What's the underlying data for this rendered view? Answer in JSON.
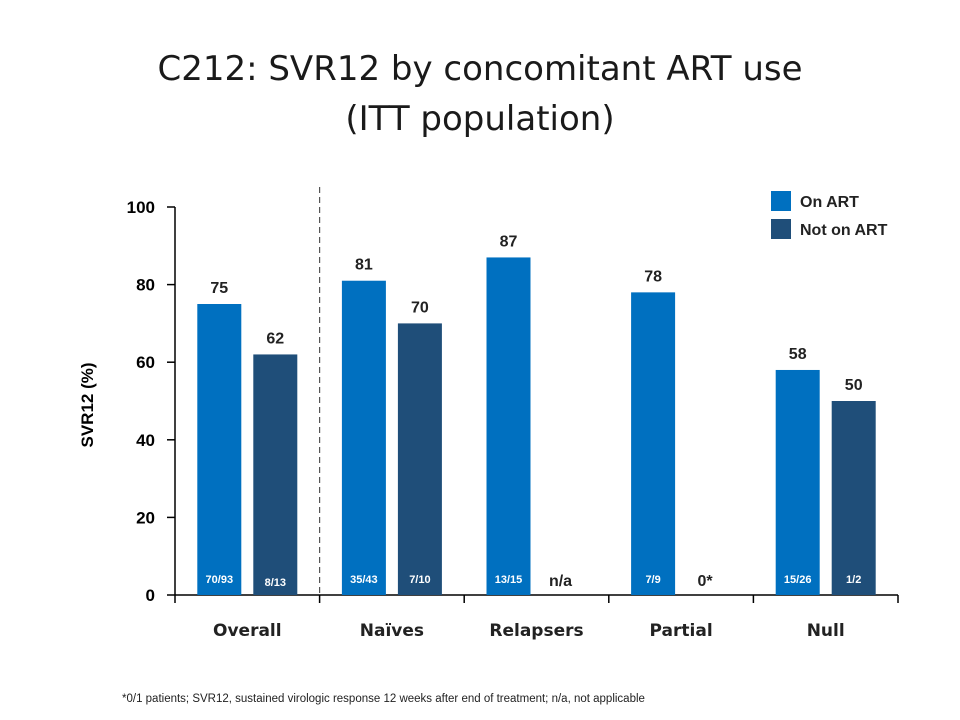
{
  "title_line1": "C212: SVR12 by concomitant ART use",
  "title_line2": "(ITT population)",
  "footnote": "*0/1 patients; SVR12, sustained virologic response 12 weeks after end of treatment; n/a, not applicable",
  "colors": {
    "on_art": "#0070C0",
    "not_on_art": "#1F4E79",
    "axis": "#000000"
  },
  "chart_data": {
    "type": "bar",
    "title": "C212: SVR12 by concomitant ART use (ITT population)",
    "ylabel": "SVR12 (%)",
    "xlabel": "",
    "ylim": [
      0,
      100
    ],
    "yticks": [
      0,
      20,
      40,
      60,
      80,
      100
    ],
    "grid": false,
    "legend_position": "top-right",
    "categories": [
      "Overall",
      "Naïves",
      "Relapsers",
      "Partial",
      "Null"
    ],
    "series": [
      {
        "name": "On ART",
        "values": [
          75,
          81,
          87,
          78,
          58
        ],
        "fractions": [
          "70/93",
          "35/43",
          "13/15",
          "7/9",
          "15/26"
        ]
      },
      {
        "name": "Not on ART",
        "values": [
          62,
          70,
          null,
          0,
          50
        ],
        "fractions": [
          "8/13",
          "7/10",
          "",
          "",
          "1/2"
        ],
        "value_labels": [
          "62",
          "70",
          "n/a",
          "0*",
          "50"
        ]
      }
    ]
  }
}
